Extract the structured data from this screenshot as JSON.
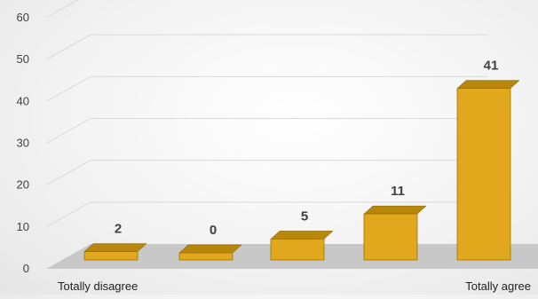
{
  "chart_data": {
    "type": "bar",
    "style": "3d-column",
    "categories": [
      "Totally disagree",
      "",
      "",
      "",
      "Totally agree"
    ],
    "values": [
      2,
      0,
      5,
      11,
      41
    ],
    "data_labels": [
      "2",
      "0",
      "5",
      "11",
      "41"
    ],
    "y_ticks": [
      "0",
      "10",
      "20",
      "30",
      "40",
      "50",
      "60"
    ],
    "ylim": [
      0,
      60
    ],
    "grid": true,
    "legend": "none",
    "title": "",
    "xlabel": "",
    "ylabel": "",
    "bar_color": "#E2A81D",
    "bar_side_color": "#6E5206",
    "bar_top_color": "#B8860B",
    "floor_color": "#C8C8C8",
    "grid_color": "#D9D9D9"
  }
}
